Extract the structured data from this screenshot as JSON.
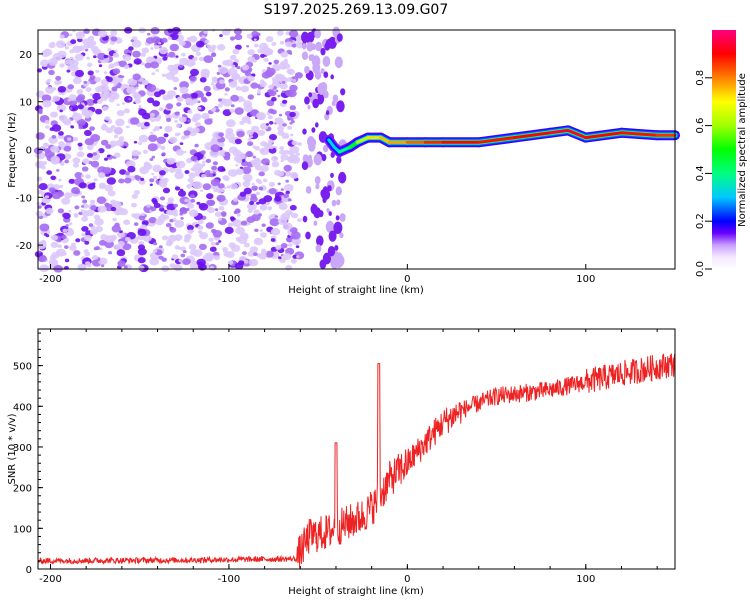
{
  "title": "S197.2025.269.13.09.G07",
  "chart_data": [
    {
      "type": "heatmap",
      "xlabel": "Height of straight line (km)",
      "ylabel": "Frequency (Hz)",
      "xlim": [
        -207,
        150
      ],
      "ylim": [
        -25,
        25
      ],
      "xticks": [
        -200,
        -100,
        0,
        100
      ],
      "yticks": [
        -20,
        -10,
        0,
        10,
        20
      ],
      "colorbar": {
        "label": "Normalized spectral amplitude",
        "range": [
          0.0,
          1.0
        ],
        "ticks": [
          0.0,
          0.2,
          0.4,
          0.6,
          0.8
        ],
        "tick_labels": [
          "0.0",
          "0.2",
          "0.4",
          "0.6",
          "0.8"
        ]
      },
      "ridge": {
        "description": "dominant frequency ridge",
        "x": [
          -44,
          -41,
          -38,
          -32,
          -28,
          -22,
          -15,
          -10,
          0,
          10,
          20,
          40,
          60,
          80,
          90,
          100,
          120,
          140,
          150
        ],
        "y": [
          2,
          0.5,
          -0.5,
          0.5,
          1.5,
          2.5,
          2.5,
          1.5,
          1.5,
          1.5,
          1.5,
          1.5,
          2.5,
          3.5,
          4,
          2.5,
          3.5,
          3,
          3
        ],
        "amplitude": [
          0.35,
          0.3,
          0.35,
          0.45,
          0.55,
          0.7,
          0.75,
          0.75,
          0.8,
          0.85,
          0.9,
          0.9,
          0.88,
          0.92,
          0.95,
          0.9,
          0.9,
          0.88,
          0.85
        ]
      }
    },
    {
      "type": "line",
      "xlabel": "Height of straight line (km)",
      "ylabel": "SNR (10 * v/v)",
      "xlim": [
        -207,
        150
      ],
      "ylim": [
        0,
        590
      ],
      "xticks": [
        -200,
        -100,
        0,
        100
      ],
      "yticks": [
        0,
        100,
        200,
        300,
        400,
        500
      ],
      "color": "#ee2222",
      "trend_x": [
        -207,
        -120,
        -62,
        -55,
        -45,
        -35,
        -25,
        -18,
        -10,
        0,
        10,
        20,
        30,
        50,
        80,
        100,
        120,
        150
      ],
      "trend_y": [
        20,
        22,
        25,
        80,
        90,
        110,
        130,
        160,
        220,
        260,
        310,
        360,
        390,
        425,
        440,
        460,
        480,
        505
      ],
      "spikes": [
        {
          "x": -40,
          "y": 310
        },
        {
          "x": -16,
          "y": 505
        }
      ]
    }
  ]
}
